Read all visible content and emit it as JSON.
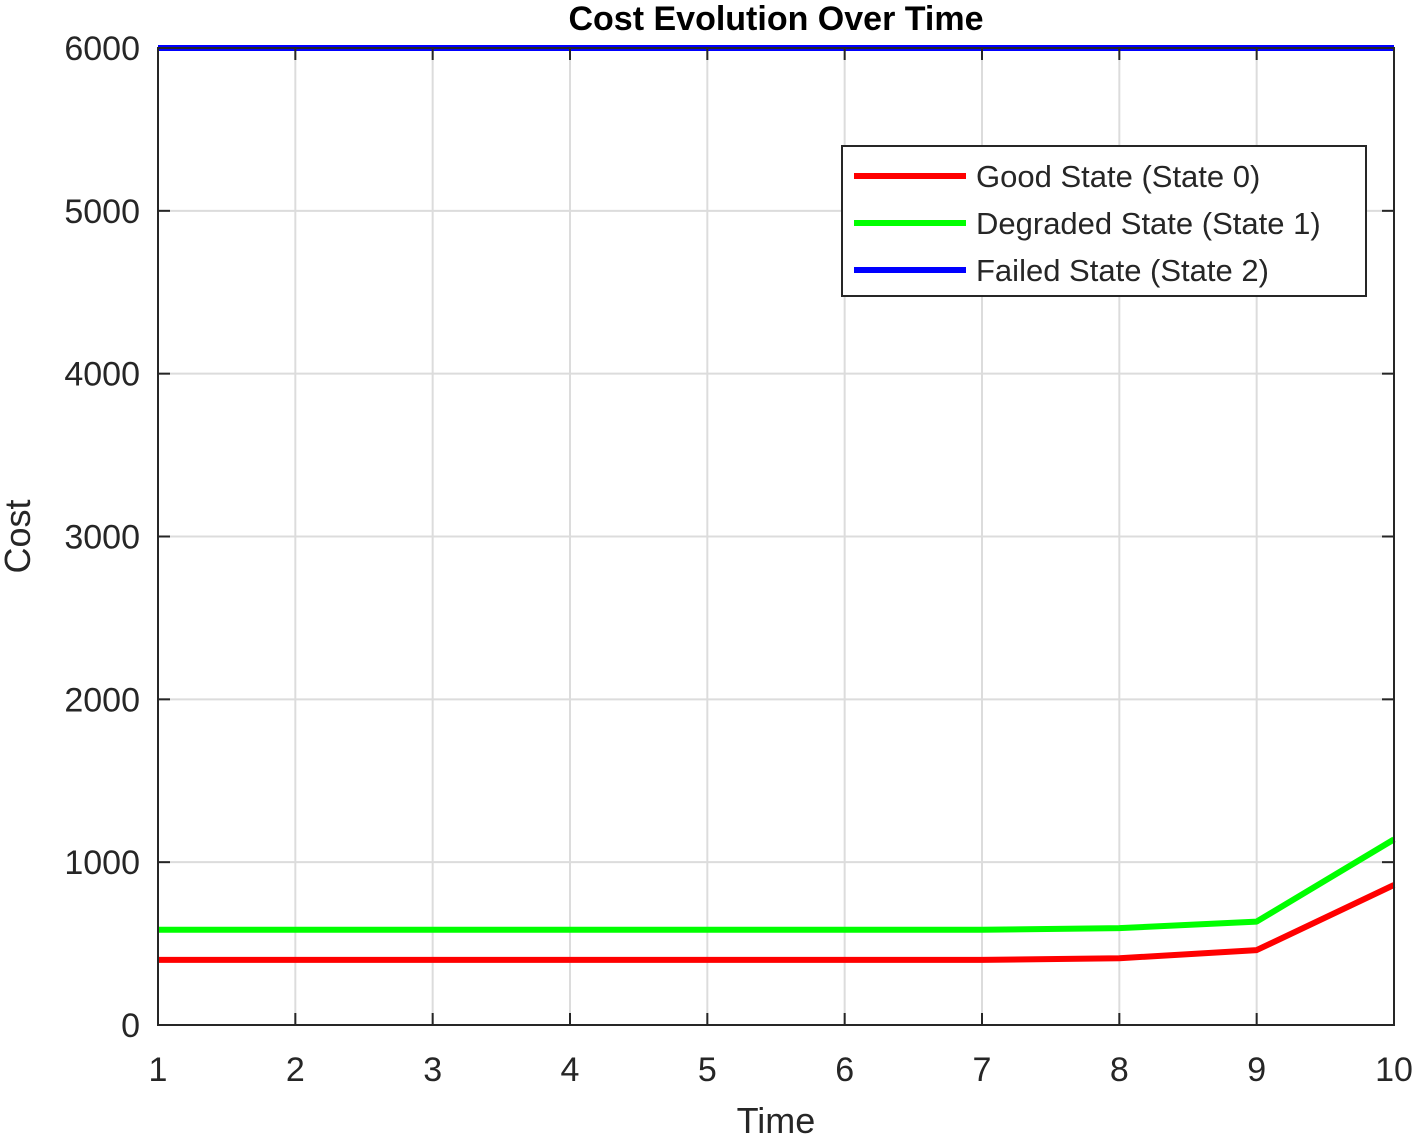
{
  "chart_data": {
    "type": "line",
    "title": "Cost Evolution Over Time",
    "xlabel": "Time",
    "ylabel": "Cost",
    "xlim": [
      1,
      10
    ],
    "ylim": [
      0,
      6000
    ],
    "x_ticks": [
      "1",
      "2",
      "3",
      "4",
      "5",
      "6",
      "7",
      "8",
      "9",
      "10"
    ],
    "y_ticks": [
      "0",
      "1000",
      "2000",
      "3000",
      "4000",
      "5000",
      "6000"
    ],
    "grid": true,
    "legend_position": "top-right",
    "x": [
      1,
      2,
      3,
      4,
      5,
      6,
      7,
      8,
      9,
      10
    ],
    "series": [
      {
        "name": "Good State (State 0)",
        "color": "#ff0000",
        "values": [
          400,
          400,
          400,
          400,
          400,
          400,
          400,
          410,
          460,
          860
        ]
      },
      {
        "name": "Degraded State (State 1)",
        "color": "#00ff00",
        "values": [
          585,
          585,
          585,
          585,
          585,
          585,
          585,
          595,
          635,
          1140
        ]
      },
      {
        "name": "Failed State (State 2)",
        "color": "#0000ff",
        "values": [
          6000,
          6000,
          6000,
          6000,
          6000,
          6000,
          6000,
          6000,
          6000,
          6000
        ]
      }
    ]
  }
}
